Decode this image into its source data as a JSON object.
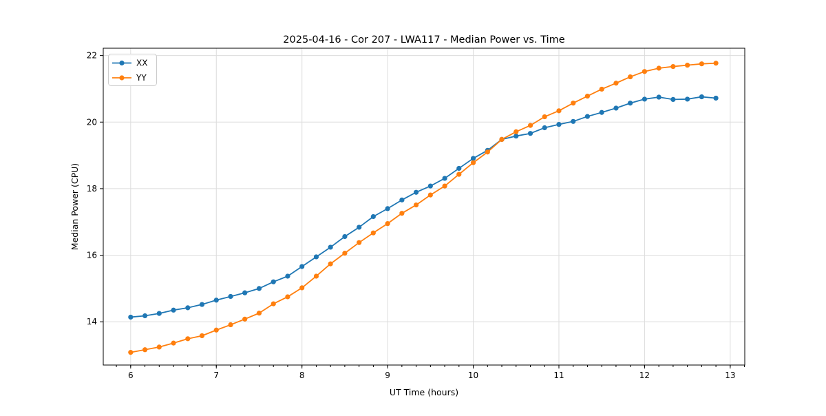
{
  "chart_data": {
    "type": "line",
    "title": "2025-04-16 - Cor 207 - LWA117 - Median Power vs. Time",
    "xlabel": "UT Time (hours)",
    "ylabel": "Median Power (CPU)",
    "xlim": [
      5.68,
      13.17
    ],
    "ylim": [
      12.7,
      22.22
    ],
    "x_major_ticks": [
      6,
      7,
      8,
      9,
      10,
      11,
      12,
      13
    ],
    "y_major_ticks": [
      14,
      16,
      18,
      20,
      22
    ],
    "x_minor_step": 0.166667,
    "grid": true,
    "legend_position": "upper-left",
    "marker": "circle",
    "x": [
      6.0,
      6.167,
      6.333,
      6.5,
      6.667,
      6.833,
      7.0,
      7.167,
      7.333,
      7.5,
      7.667,
      7.833,
      8.0,
      8.167,
      8.333,
      8.5,
      8.667,
      8.833,
      9.0,
      9.167,
      9.333,
      9.5,
      9.667,
      9.833,
      10.0,
      10.167,
      10.333,
      10.5,
      10.667,
      10.833,
      11.0,
      11.167,
      11.333,
      11.5,
      11.667,
      11.833,
      12.0,
      12.167,
      12.333,
      12.5,
      12.667,
      12.833
    ],
    "series": [
      {
        "name": "XX",
        "color": "#1f77b4",
        "values": [
          14.14,
          14.18,
          14.25,
          14.35,
          14.42,
          14.52,
          14.65,
          14.76,
          14.87,
          15.0,
          15.2,
          15.37,
          15.66,
          15.95,
          16.24,
          16.56,
          16.84,
          17.16,
          17.4,
          17.66,
          17.89,
          18.08,
          18.31,
          18.61,
          18.91,
          19.15,
          19.48,
          19.58,
          19.66,
          19.83,
          19.93,
          20.02,
          20.17,
          20.29,
          20.42,
          20.57,
          20.69,
          20.75,
          20.68,
          20.69,
          20.76,
          20.72
        ]
      },
      {
        "name": "YY",
        "color": "#ff7f0e",
        "values": [
          13.08,
          13.16,
          13.24,
          13.36,
          13.49,
          13.58,
          13.75,
          13.91,
          14.08,
          14.26,
          14.54,
          14.75,
          15.02,
          15.37,
          15.74,
          16.06,
          16.38,
          16.67,
          16.95,
          17.26,
          17.51,
          17.81,
          18.08,
          18.43,
          18.78,
          19.1,
          19.48,
          19.71,
          19.9,
          20.16,
          20.34,
          20.57,
          20.78,
          20.99,
          21.17,
          21.36,
          21.52,
          21.62,
          21.67,
          21.71,
          21.75,
          21.77
        ]
      }
    ]
  }
}
